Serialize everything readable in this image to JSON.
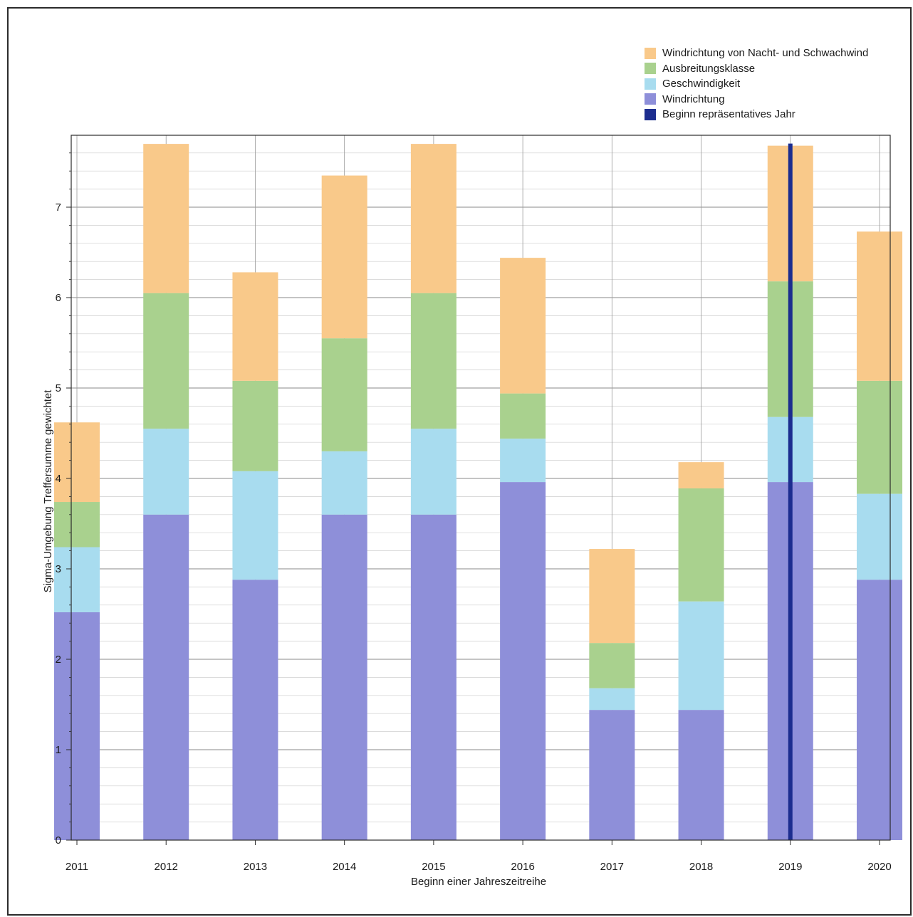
{
  "chart_data": {
    "type": "bar",
    "stacked": true,
    "title": "",
    "xlabel": "Beginn einer Jahreszeitreihe",
    "ylabel": "Sigma-Umgebung Treffersumme gewichtet",
    "ylim": [
      0,
      7.7
    ],
    "yticks": [
      "0",
      "1",
      "2",
      "3",
      "4",
      "5",
      "6",
      "7"
    ],
    "categories": [
      "2011",
      "2012",
      "2013",
      "2014",
      "2015",
      "2016",
      "2017",
      "2018",
      "2019",
      "2020"
    ],
    "series": [
      {
        "name": "Windrichtung",
        "color": "#8e8fd9",
        "values": [
          2.52,
          3.6,
          2.88,
          3.6,
          3.6,
          3.96,
          1.44,
          1.44,
          3.96,
          2.88
        ]
      },
      {
        "name": "Geschwindigkeit",
        "color": "#a8dcef",
        "values": [
          0.72,
          0.95,
          1.2,
          0.7,
          0.95,
          0.48,
          0.24,
          1.2,
          0.72,
          0.95
        ]
      },
      {
        "name": "Ausbreitungsklasse",
        "color": "#a9d18e",
        "values": [
          0.5,
          1.5,
          1.0,
          1.25,
          1.5,
          0.5,
          0.5,
          1.25,
          1.5,
          1.25
        ]
      },
      {
        "name": "Windrichtung von Nacht- und Schwachwind",
        "color": "#f9c98a",
        "values": [
          0.88,
          1.65,
          1.2,
          1.8,
          1.65,
          1.5,
          1.04,
          0.29,
          1.5,
          1.65
        ]
      }
    ],
    "marker": {
      "name": "Beginn repräsentatives Jahr",
      "x": "2019",
      "color": "#1c2d8f"
    },
    "legend": {
      "position": "top-right",
      "items": [
        {
          "label": "Windrichtung von Nacht- und Schwachwind",
          "color": "#f9c98a"
        },
        {
          "label": "Ausbreitungsklasse",
          "color": "#a9d18e"
        },
        {
          "label": "Geschwindigkeit",
          "color": "#a8dcef"
        },
        {
          "label": "Windrichtung",
          "color": "#8e8fd9"
        },
        {
          "label": "Beginn repräsentatives Jahr",
          "color": "#1c2d8f"
        }
      ]
    },
    "grid": true
  }
}
